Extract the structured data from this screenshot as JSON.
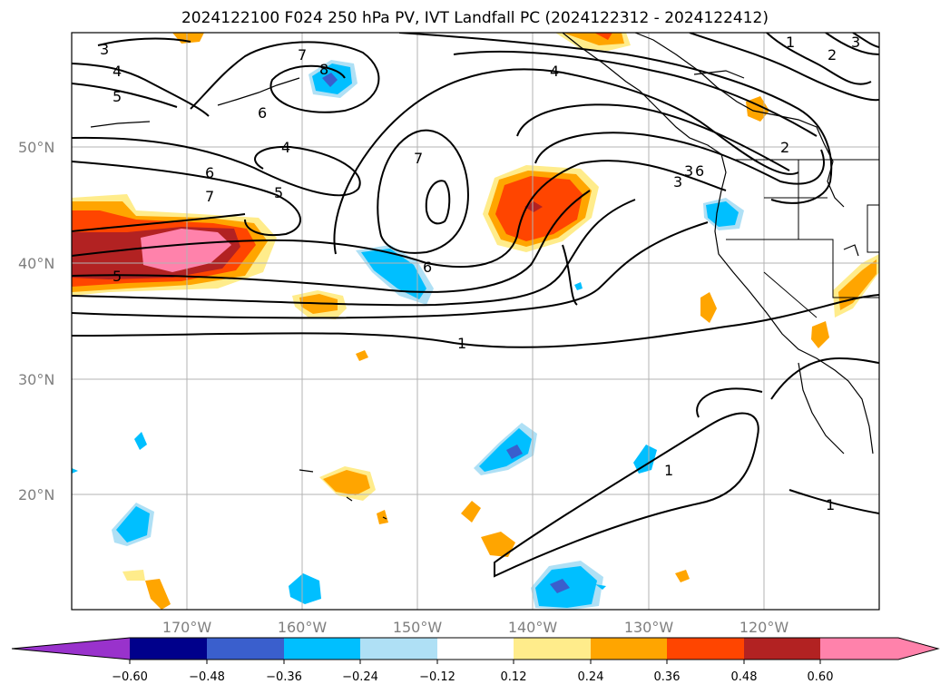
{
  "title": "2024122100 F024 250 hPa PV, IVT Landfall PC (2024122312 - 2024122412)",
  "map": {
    "lat_ticks": [
      "20°N",
      "30°N",
      "40°N",
      "50°N"
    ],
    "lon_ticks": [
      "170°W",
      "160°W",
      "150°W",
      "140°W",
      "130°W",
      "120°W"
    ],
    "gridline_color": "#b3b3b3",
    "coast_color": "#000000",
    "contour_labels": [
      "3",
      "4",
      "5",
      "7",
      "8",
      "6",
      "4",
      "6",
      "7",
      "5",
      "7",
      "6",
      "5",
      "1",
      "4",
      "3",
      "3",
      "6",
      "2",
      "1",
      "2",
      "3",
      "1",
      "1"
    ]
  },
  "colorbar": {
    "ticks": [
      "−0.60",
      "−0.48",
      "−0.36",
      "−0.24",
      "−0.12",
      "0.12",
      "0.24",
      "0.36",
      "0.48",
      "0.60"
    ],
    "colors": [
      "#9932cc",
      "#00008b",
      "#3a5fcd",
      "#00bfff",
      "#afe0f5",
      "#ffffff",
      "#ffec8b",
      "#ffa500",
      "#ff4500",
      "#b22222",
      "#ff82ab"
    ]
  }
}
